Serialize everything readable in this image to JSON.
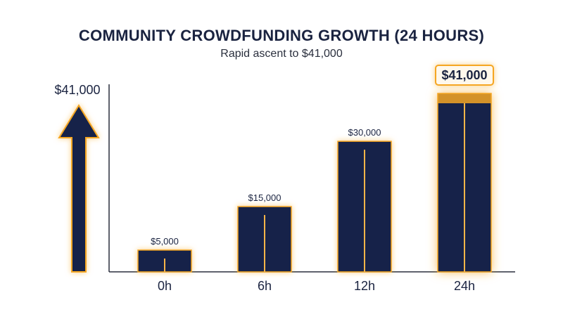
{
  "chart_data": {
    "type": "bar",
    "title": "COMMUNITY CROWDFUNDING GROWTH (24 HOURS)",
    "subtitle": "Rapid ascent to $41,000",
    "categories": [
      "0h",
      "6h",
      "12h",
      "24h"
    ],
    "values": [
      5000,
      15000,
      30000,
      41000
    ],
    "data_labels": [
      "$5,000",
      "$15,000",
      "$30,000",
      "$41,000"
    ],
    "y_axis_label": "$41,000",
    "ylim": [
      0,
      41000
    ],
    "grid": false,
    "highlight_index": 3,
    "colors": {
      "bar": "#16244a",
      "glow": "#f5a623",
      "accent_line": "#f7b548",
      "highlight_box_bg": "#fff8ec",
      "text": "#1a2340",
      "axis": "#2a2f3d"
    }
  }
}
